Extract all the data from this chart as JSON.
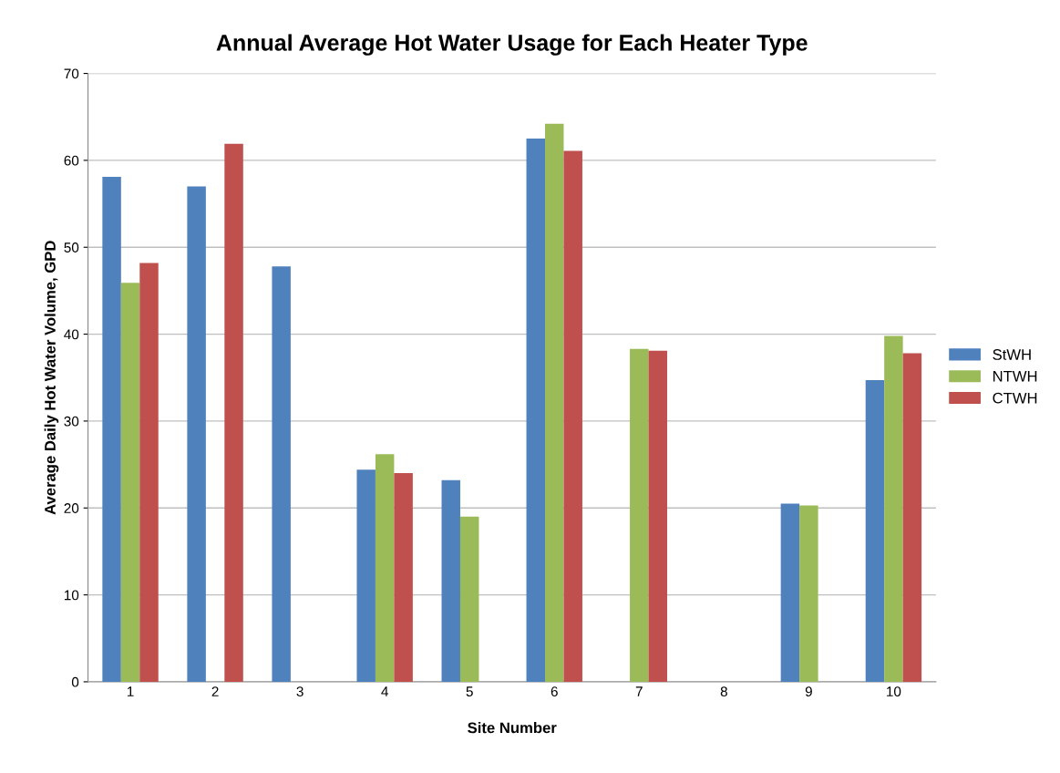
{
  "chart_data": {
    "type": "bar",
    "title": "Annual Average Hot Water Usage for Each Heater Type",
    "xlabel": "Site Number",
    "ylabel": "Average Daily Hot Water Volume, GPD",
    "categories": [
      "1",
      "2",
      "3",
      "4",
      "5",
      "6",
      "7",
      "8",
      "9",
      "10"
    ],
    "series": [
      {
        "name": "StWH",
        "color": "#4f81bd",
        "values": [
          58.1,
          57.0,
          47.8,
          24.4,
          23.2,
          62.5,
          null,
          null,
          20.5,
          34.7
        ]
      },
      {
        "name": "NTWH",
        "color": "#9bbb59",
        "values": [
          45.9,
          null,
          null,
          26.2,
          19.0,
          64.2,
          38.3,
          null,
          20.3,
          39.8
        ]
      },
      {
        "name": "CTWH",
        "color": "#c0504d",
        "values": [
          48.2,
          61.9,
          null,
          24.0,
          null,
          61.1,
          38.1,
          null,
          null,
          37.8
        ]
      }
    ],
    "ylim": [
      0,
      70
    ],
    "yticks": [
      0,
      10,
      20,
      30,
      40,
      50,
      60,
      70
    ],
    "grid": "y",
    "legend": "right"
  }
}
